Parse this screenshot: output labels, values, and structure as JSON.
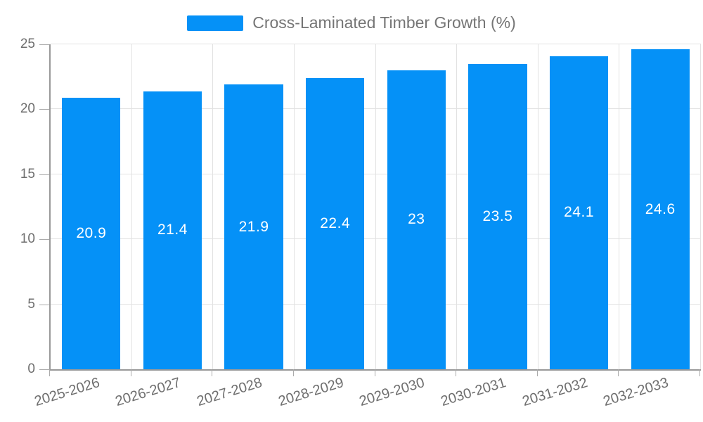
{
  "chart_data": {
    "type": "bar",
    "title": "Cross-Laminated Timber Growth (%)",
    "legend": [
      "Cross-Laminated Timber Growth (%)"
    ],
    "legend_position": "top-center",
    "categories": [
      "2025-2026",
      "2026-2027",
      "2027-2028",
      "2028-2029",
      "2029-2030",
      "2030-2031",
      "2031-2032",
      "2032-2033"
    ],
    "series": [
      {
        "name": "Cross-Laminated Timber Growth (%)",
        "values": [
          20.9,
          21.4,
          21.9,
          22.4,
          23,
          23.5,
          24.1,
          24.6
        ]
      }
    ],
    "value_labels": [
      "20.9",
      "21.4",
      "21.9",
      "22.4",
      "23",
      "23.5",
      "24.1",
      "24.6"
    ],
    "value_labels_position": "inside-center",
    "xlabel": "",
    "ylabel": "",
    "ylim": [
      0,
      25
    ],
    "yticks": [
      0,
      5,
      10,
      15,
      20,
      25
    ],
    "grid": "horizontal and vertical, behind bars",
    "x_label_rotation_deg": -17
  },
  "colors": {
    "bar": "#0591f7",
    "axis_line": "#999999",
    "gridline": "#e2e2e2",
    "tick_mark": "#ababab",
    "axis_text": "#6e6e6e",
    "legend_text": "#757575",
    "value_label_text": "#ffffff",
    "background": "#ffffff"
  }
}
